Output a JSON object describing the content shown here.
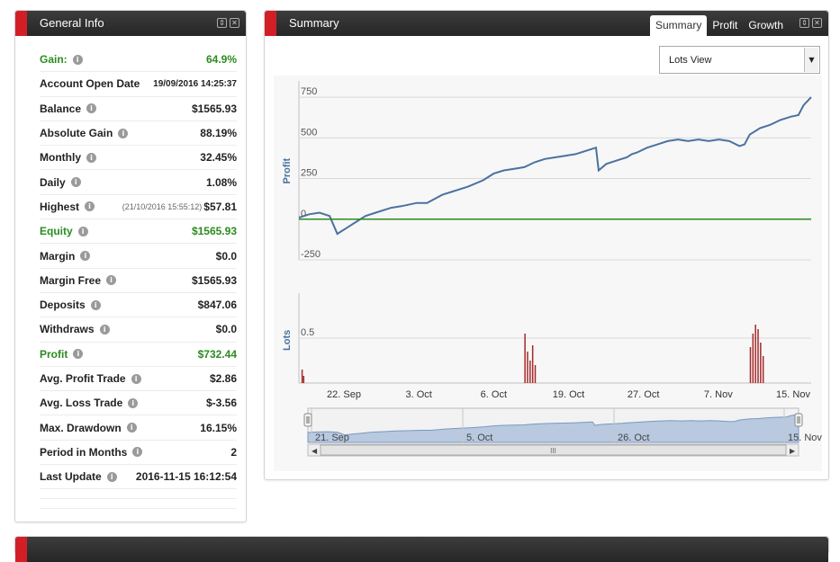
{
  "general_info": {
    "title": "General Info",
    "rows": [
      {
        "label": "Gain:",
        "value": "64.9%",
        "info": true,
        "green": true
      },
      {
        "label": "Account Open Date",
        "value": "19/09/2016 14:25:37",
        "info": false,
        "green": false,
        "small": true
      },
      {
        "label": "Balance",
        "value": "$1565.93",
        "info": true,
        "green": false
      },
      {
        "label": "Absolute Gain",
        "value": "88.19%",
        "info": true,
        "green": false
      },
      {
        "label": "Monthly",
        "value": "32.45%",
        "info": true,
        "green": false
      },
      {
        "label": "Daily",
        "value": "1.08%",
        "info": true,
        "green": false
      },
      {
        "label": "Highest",
        "sub": "(21/10/2016 15:55:12)",
        "value": "$57.81",
        "info": true,
        "green": false
      },
      {
        "label": "Equity",
        "value": "$1565.93",
        "info": true,
        "green": true
      },
      {
        "label": "Margin",
        "value": "$0.0",
        "info": true,
        "green": false
      },
      {
        "label": "Margin Free",
        "value": "$1565.93",
        "info": true,
        "green": false
      },
      {
        "label": "Deposits",
        "value": "$847.06",
        "info": true,
        "green": false
      },
      {
        "label": "Withdraws",
        "value": "$0.0",
        "info": true,
        "green": false
      },
      {
        "label": "Profit",
        "value": "$732.44",
        "info": true,
        "green": true
      },
      {
        "label": "Avg. Profit Trade",
        "value": "$2.86",
        "info": true,
        "green": false
      },
      {
        "label": "Avg. Loss Trade",
        "value": "$-3.56",
        "info": true,
        "green": false
      },
      {
        "label": "Max. Drawdown",
        "value": "16.15%",
        "info": true,
        "green": false
      },
      {
        "label": "Period in Months",
        "value": "2",
        "info": true,
        "green": false
      },
      {
        "label": "Last Update",
        "value": "2016-11-15 16:12:54",
        "info": true,
        "green": false
      }
    ]
  },
  "summary": {
    "title": "Summary",
    "tabs": [
      "Summary",
      "Profit",
      "Growth"
    ],
    "active_tab": "Summary",
    "view_select": "Lots View"
  },
  "chart_data": [
    {
      "type": "line",
      "ylabel": "Profit",
      "ylim": [
        -250,
        850
      ],
      "yticks": [
        -250,
        0,
        250,
        500,
        750
      ],
      "series": [
        {
          "color": "#4a72a0",
          "x": [
            0,
            0.02,
            0.04,
            0.06,
            0.075,
            0.085,
            0.095,
            0.11,
            0.13,
            0.15,
            0.18,
            0.2,
            0.23,
            0.25,
            0.28,
            0.3,
            0.33,
            0.36,
            0.38,
            0.4,
            0.42,
            0.44,
            0.46,
            0.48,
            0.5,
            0.52,
            0.54,
            0.56,
            0.58,
            0.585,
            0.6,
            0.62,
            0.64,
            0.65,
            0.66,
            0.68,
            0.7,
            0.72,
            0.74,
            0.76,
            0.78,
            0.8,
            0.82,
            0.84,
            0.86,
            0.87,
            0.88,
            0.9,
            0.92,
            0.94,
            0.96,
            0.975,
            0.985,
            1.0
          ],
          "y": [
            10,
            30,
            40,
            20,
            -90,
            -70,
            -50,
            -20,
            20,
            40,
            70,
            80,
            100,
            100,
            150,
            170,
            200,
            240,
            280,
            300,
            310,
            320,
            350,
            370,
            380,
            390,
            400,
            420,
            440,
            300,
            340,
            360,
            380,
            400,
            410,
            440,
            460,
            480,
            490,
            480,
            490,
            480,
            490,
            480,
            450,
            460,
            520,
            560,
            580,
            610,
            630,
            640,
            700,
            750
          ]
        },
        {
          "color": "#2a8c1e",
          "x": [
            0,
            1
          ],
          "y": [
            0,
            0
          ]
        }
      ]
    },
    {
      "type": "bar",
      "ylabel": "Lots",
      "yticks": [
        0.5
      ],
      "x_tick_labels": [
        "22. Sep",
        "3. Oct",
        "6. Oct",
        "19. Oct",
        "27. Oct",
        "7. Nov",
        "15. Nov"
      ],
      "bar_color": "#a52a2a",
      "x": [
        0.005,
        0.008,
        0.44,
        0.445,
        0.45,
        0.455,
        0.46,
        0.88,
        0.885,
        0.89,
        0.895,
        0.9,
        0.905
      ],
      "values": [
        0.15,
        0.08,
        0.55,
        0.35,
        0.25,
        0.42,
        0.2,
        0.4,
        0.55,
        0.65,
        0.6,
        0.45,
        0.3
      ]
    }
  ],
  "navigator": {
    "labels": [
      "21. Sep",
      "5. Oct",
      "26. Oct",
      "15. Nov"
    ],
    "scroll_grip": "III"
  },
  "bottom_panel": {}
}
